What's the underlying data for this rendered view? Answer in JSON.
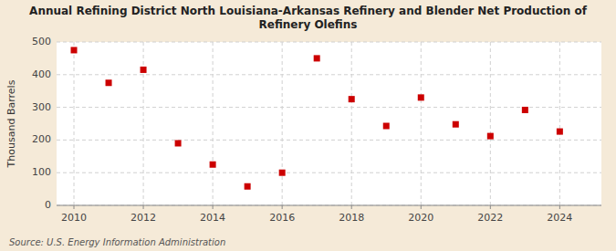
{
  "chart_data": {
    "type": "scatter",
    "title": "Annual Refining District North Louisiana-Arkansas Refinery and Blender Net Production of\nRefinery Olefins",
    "ylabel": "Thousand Barrels",
    "source": "Source: U.S. Energy Information Administration",
    "x": [
      2010,
      2011,
      2012,
      2013,
      2014,
      2015,
      2016,
      2017,
      2018,
      2019,
      2020,
      2021,
      2022,
      2023,
      2024
    ],
    "values": [
      475,
      375,
      415,
      190,
      125,
      58,
      100,
      450,
      325,
      243,
      330,
      248,
      212,
      292,
      226
    ],
    "color": "#cc0000",
    "marker": "square",
    "xlim": [
      2009.5,
      2025.2
    ],
    "ylim": [
      0,
      500
    ],
    "xticks": [
      2010,
      2012,
      2014,
      2016,
      2018,
      2020,
      2022,
      2024
    ],
    "yticks": [
      0,
      100,
      200,
      300,
      400,
      500
    ],
    "grid": true
  }
}
